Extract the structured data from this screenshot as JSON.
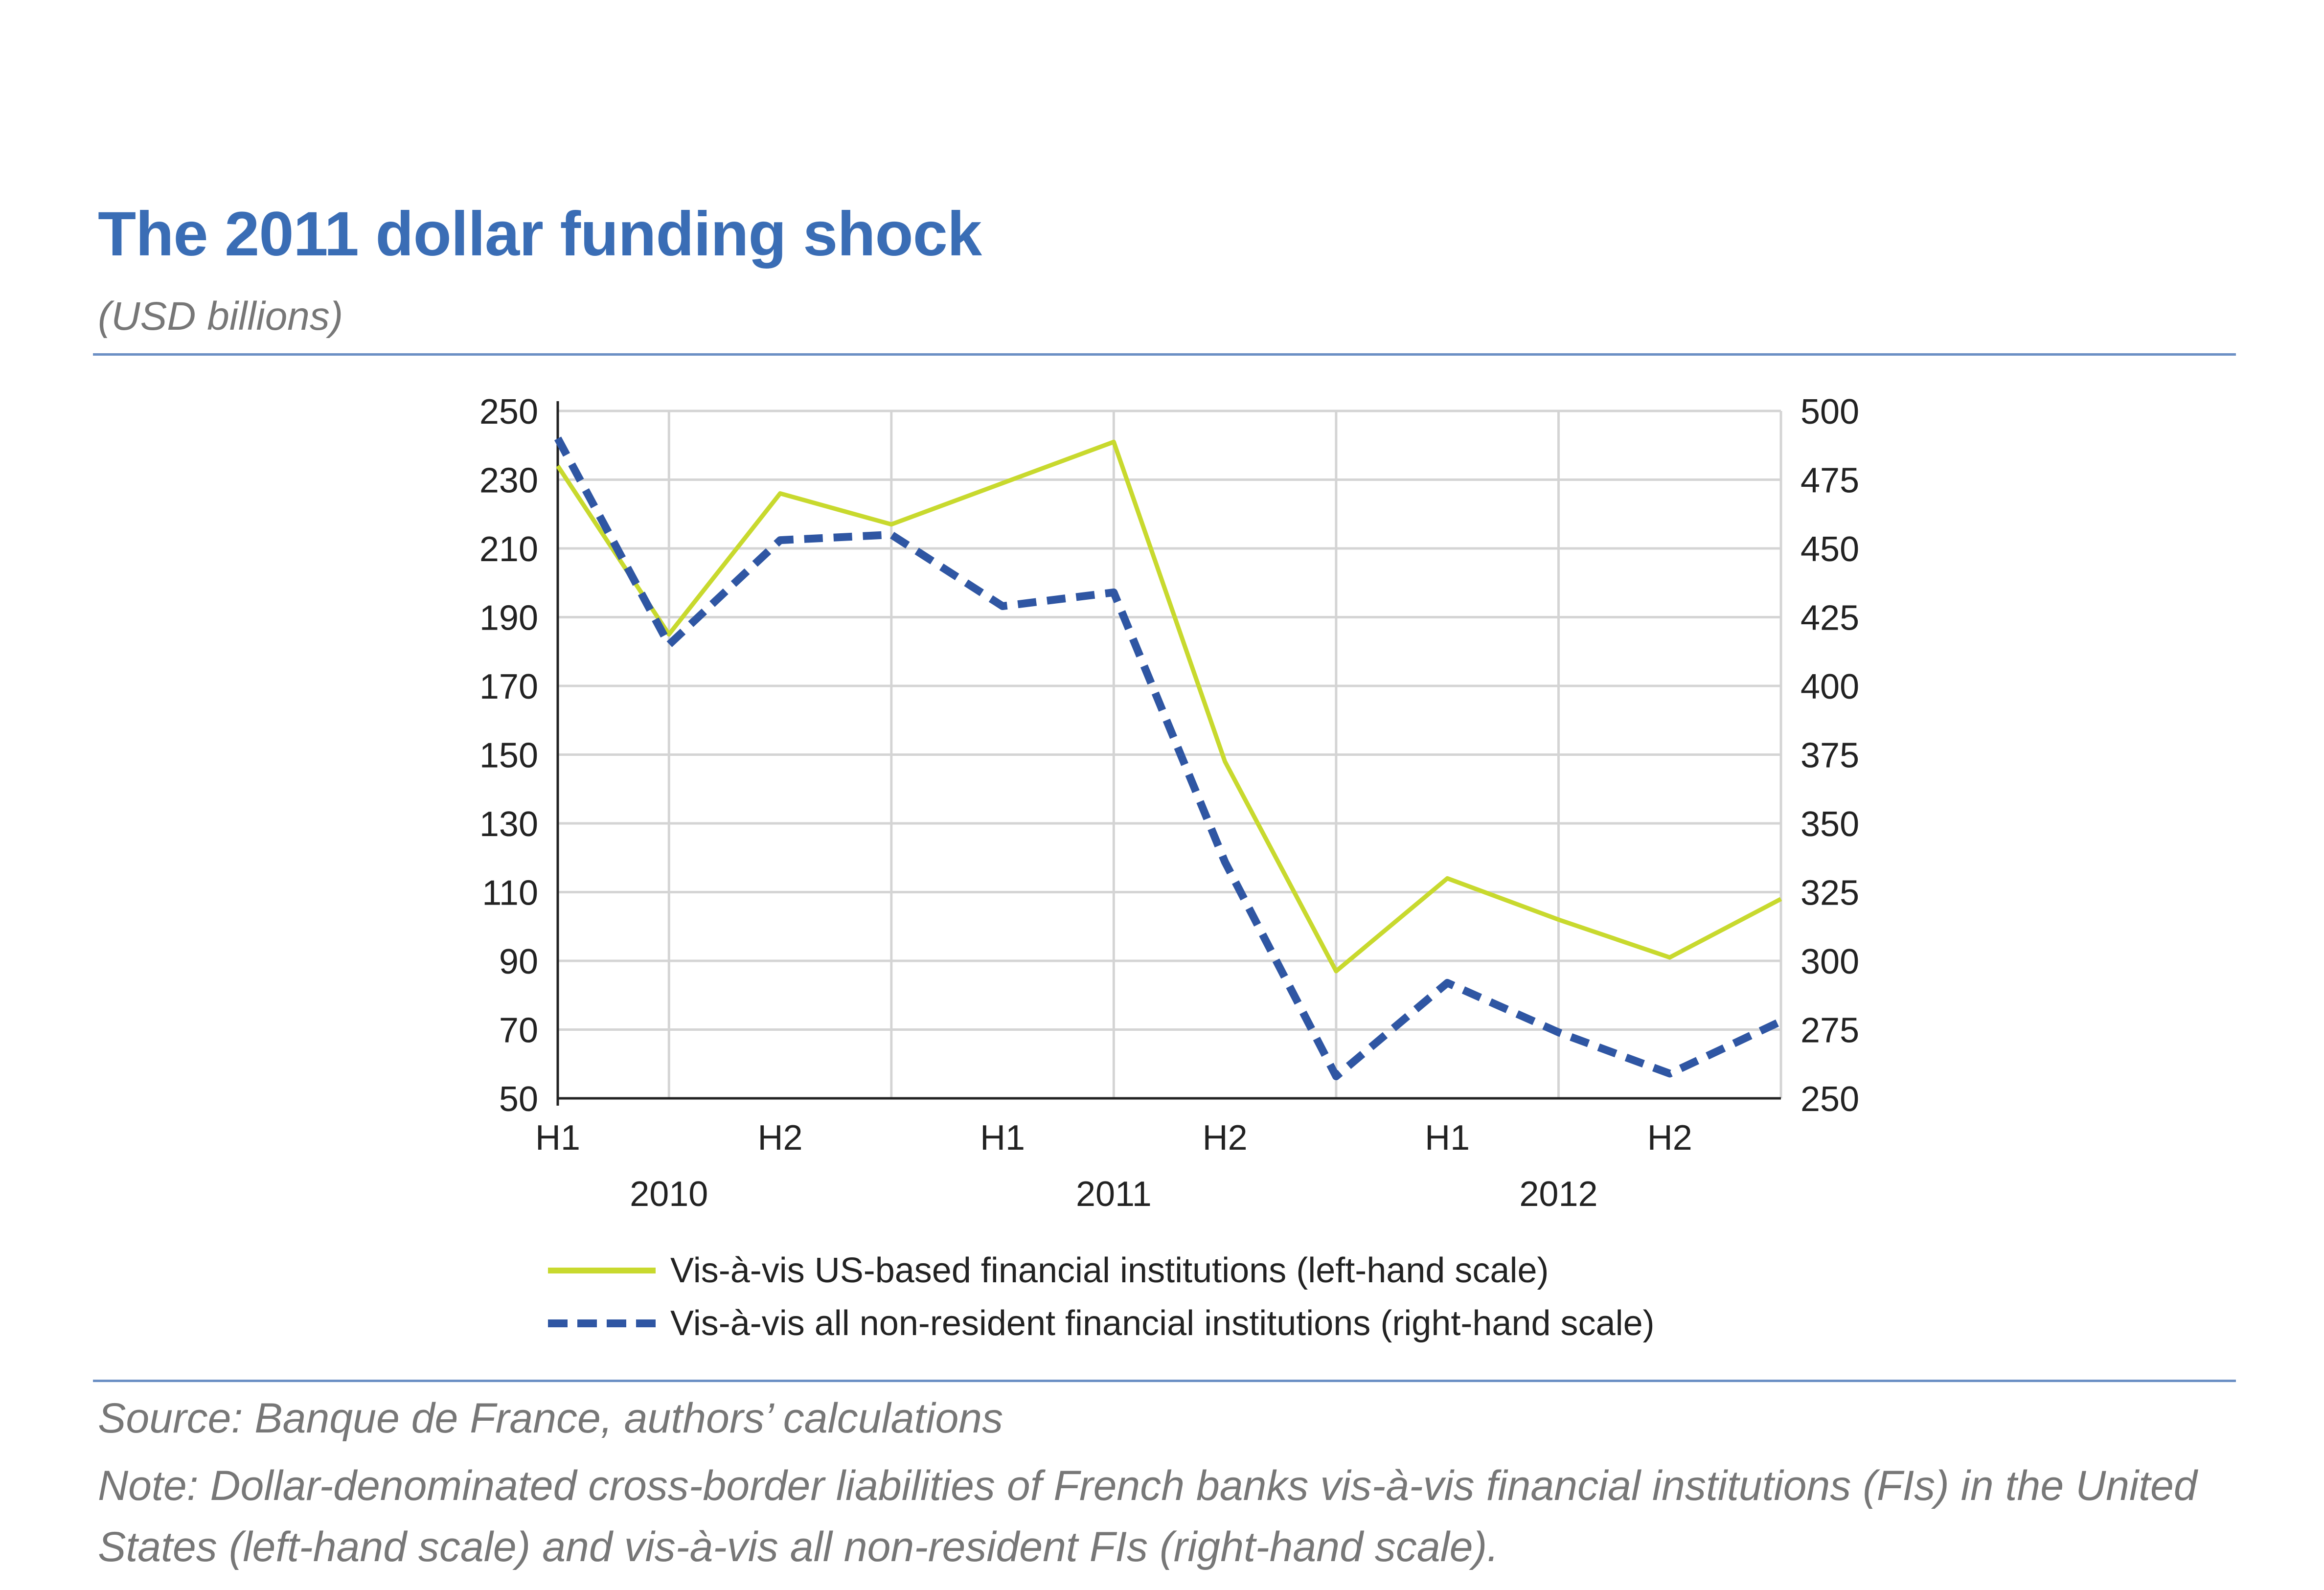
{
  "header": {
    "title": "The 2011 dollar funding shock",
    "subtitle": "(USD billions)"
  },
  "footer": {
    "source": "Source: Banque de France, authors’ calculations",
    "note": "Note: Dollar-denominated cross-border liabilities of French banks vis-à-vis financial institutions (FIs) in the United States (left-hand scale) and vis-à-vis all non-resident FIs (right-hand scale)."
  },
  "chart_data": {
    "type": "line",
    "x_ticks": [
      "H1",
      "H2",
      "H1",
      "H2",
      "H1",
      "H2"
    ],
    "year_labels": [
      "2010",
      "2011",
      "2012"
    ],
    "x_points": 12,
    "y_left": {
      "range": [
        50,
        250
      ],
      "ticks": [
        50,
        70,
        90,
        110,
        130,
        150,
        170,
        190,
        210,
        230,
        250
      ]
    },
    "y_right": {
      "range": [
        250,
        500
      ],
      "ticks": [
        250,
        275,
        300,
        325,
        350,
        375,
        400,
        425,
        450,
        475,
        500
      ]
    },
    "grid": true,
    "legend_position": "bottom",
    "series": [
      {
        "name": "Vis-à-vis US-based financial institutions (left-hand scale)",
        "axis": "left",
        "color": "#c8d92e",
        "style": "solid",
        "values": [
          234,
          185,
          226,
          217,
          229,
          241,
          148,
          87,
          114,
          102,
          91,
          108
        ]
      },
      {
        "name": "Vis-à-vis all non-resident financial institutions (right-hand scale)",
        "axis": "right",
        "color": "#2f56a3",
        "style": "dashed",
        "values": [
          490,
          415,
          453,
          455,
          429,
          434,
          336,
          258,
          292,
          274,
          259,
          278
        ]
      }
    ]
  }
}
